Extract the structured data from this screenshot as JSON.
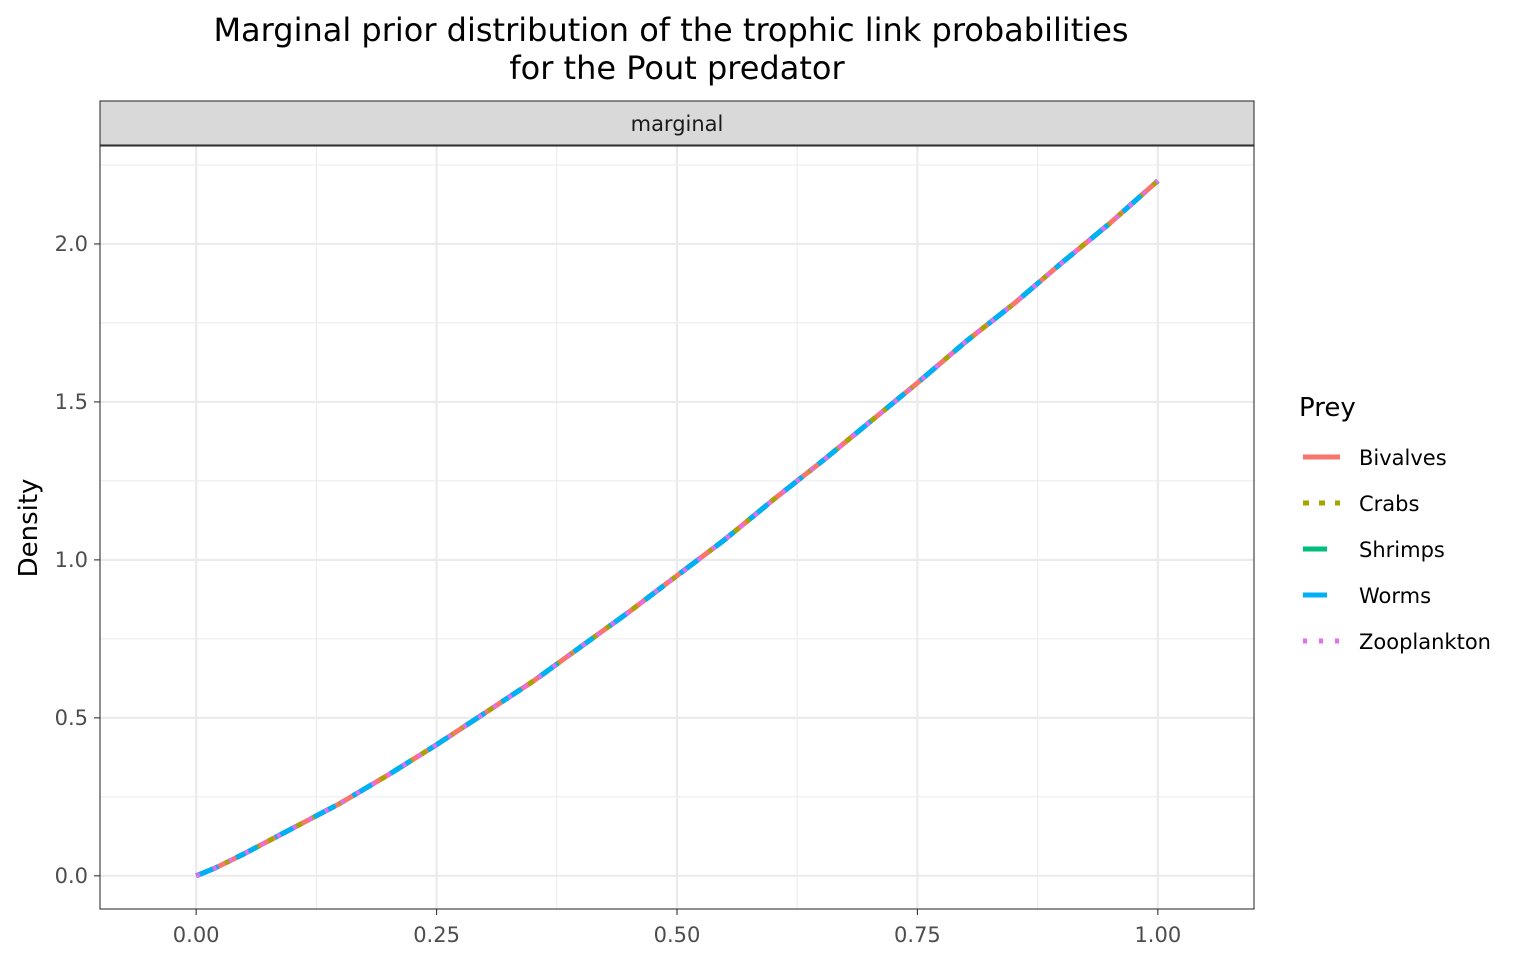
{
  "chart_data": {
    "type": "line",
    "title_lines": [
      "Marginal prior distribution of the trophic link probabilities",
      "for the Pout predator"
    ],
    "facet_label": "marginal",
    "xlabel": "",
    "ylabel": "Density",
    "xlim": [
      -0.1,
      1.1
    ],
    "ylim": [
      -0.105,
      2.31
    ],
    "x_ticks": [
      0.0,
      0.25,
      0.5,
      0.75,
      1.0
    ],
    "x_tick_labels": [
      "0.00",
      "0.25",
      "0.50",
      "0.75",
      "1.00"
    ],
    "y_ticks": [
      0.0,
      0.5,
      1.0,
      1.5,
      2.0
    ],
    "y_tick_labels": [
      "0.0",
      "0.5",
      "1.0",
      "1.5",
      "2.0"
    ],
    "grid": true,
    "legend": {
      "title": "Prey",
      "placement": "right"
    },
    "x": [
      0.0,
      0.02,
      0.05,
      0.1,
      0.15,
      0.2,
      0.25,
      0.3,
      0.35,
      0.4,
      0.45,
      0.5,
      0.55,
      0.6,
      0.65,
      0.7,
      0.75,
      0.8,
      0.85,
      0.9,
      0.95,
      1.0
    ],
    "series": [
      {
        "name": "Bivalves",
        "color": "#F8766D",
        "dash": "solid",
        "values": [
          0.0,
          0.025,
          0.07,
          0.15,
          0.23,
          0.32,
          0.415,
          0.515,
          0.615,
          0.725,
          0.835,
          0.95,
          1.065,
          1.19,
          1.31,
          1.435,
          1.56,
          1.69,
          1.81,
          1.94,
          2.065,
          2.2
        ]
      },
      {
        "name": "Crabs",
        "color": "#A3A500",
        "dash": "dashed",
        "values": [
          0.0,
          0.025,
          0.07,
          0.15,
          0.23,
          0.32,
          0.415,
          0.515,
          0.615,
          0.725,
          0.835,
          0.95,
          1.065,
          1.19,
          1.31,
          1.435,
          1.56,
          1.69,
          1.81,
          1.94,
          2.065,
          2.2
        ]
      },
      {
        "name": "Shrimps",
        "color": "#00BF7D",
        "dash": "longdash",
        "values": [
          0.0,
          0.025,
          0.07,
          0.15,
          0.23,
          0.32,
          0.415,
          0.515,
          0.615,
          0.725,
          0.835,
          0.95,
          1.065,
          1.19,
          1.31,
          1.435,
          1.56,
          1.69,
          1.81,
          1.94,
          2.065,
          2.2
        ]
      },
      {
        "name": "Worms",
        "color": "#00B0F6",
        "dash": "longdash2",
        "values": [
          0.0,
          0.025,
          0.07,
          0.15,
          0.23,
          0.32,
          0.415,
          0.515,
          0.615,
          0.725,
          0.835,
          0.95,
          1.065,
          1.19,
          1.31,
          1.435,
          1.56,
          1.69,
          1.81,
          1.94,
          2.065,
          2.2
        ]
      },
      {
        "name": "Zooplankton",
        "color": "#E76BF3",
        "dash": "dotted",
        "values": [
          0.0,
          0.025,
          0.07,
          0.15,
          0.23,
          0.32,
          0.415,
          0.515,
          0.615,
          0.725,
          0.835,
          0.95,
          1.065,
          1.19,
          1.31,
          1.435,
          1.56,
          1.69,
          1.81,
          1.94,
          2.065,
          2.2
        ]
      }
    ]
  }
}
